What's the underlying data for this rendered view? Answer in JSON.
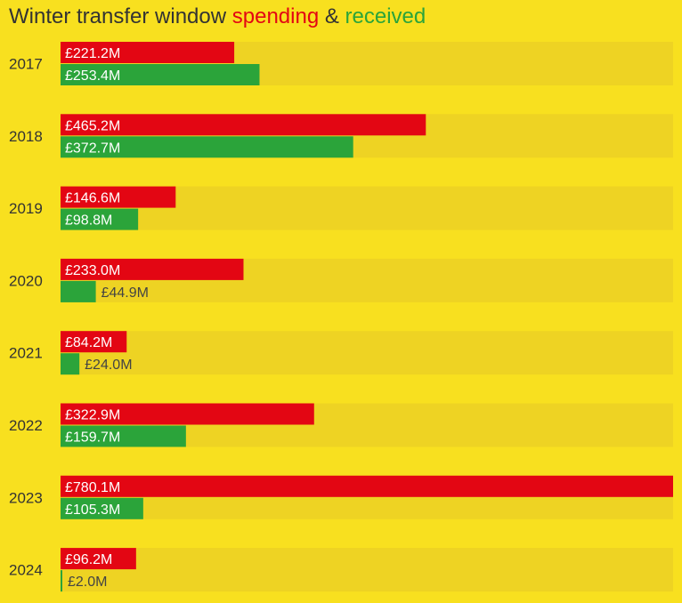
{
  "title": {
    "prefix": "Winter transfer window ",
    "spending": "spending",
    "connector": " & ",
    "received": "received"
  },
  "colors": {
    "background": "#f8e01f",
    "track": "#eed323",
    "spending": "#e30613",
    "received": "#2ba43a",
    "text": "#333333"
  },
  "chart_data": {
    "type": "bar",
    "orientation": "horizontal",
    "unit": "£M",
    "categories": [
      "2017",
      "2018",
      "2019",
      "2020",
      "2021",
      "2022",
      "2023",
      "2024"
    ],
    "xlim": [
      0,
      780.1
    ],
    "grid": false,
    "series": [
      {
        "name": "spending",
        "values": [
          221.2,
          465.2,
          146.6,
          233.0,
          84.2,
          322.9,
          780.1,
          96.2
        ],
        "labels": [
          "£221.2M",
          "£465.2M",
          "£146.6M",
          "£233.0M",
          "£84.2M",
          "£322.9M",
          "£780.1M",
          "£96.2M"
        ]
      },
      {
        "name": "received",
        "values": [
          253.4,
          372.7,
          98.8,
          44.9,
          24.0,
          159.7,
          105.3,
          2.0
        ],
        "labels": [
          "£253.4M",
          "£372.7M",
          "£98.8M",
          "£44.9M",
          "£24.0M",
          "£159.7M",
          "£105.3M",
          "£2.0M"
        ]
      }
    ]
  }
}
